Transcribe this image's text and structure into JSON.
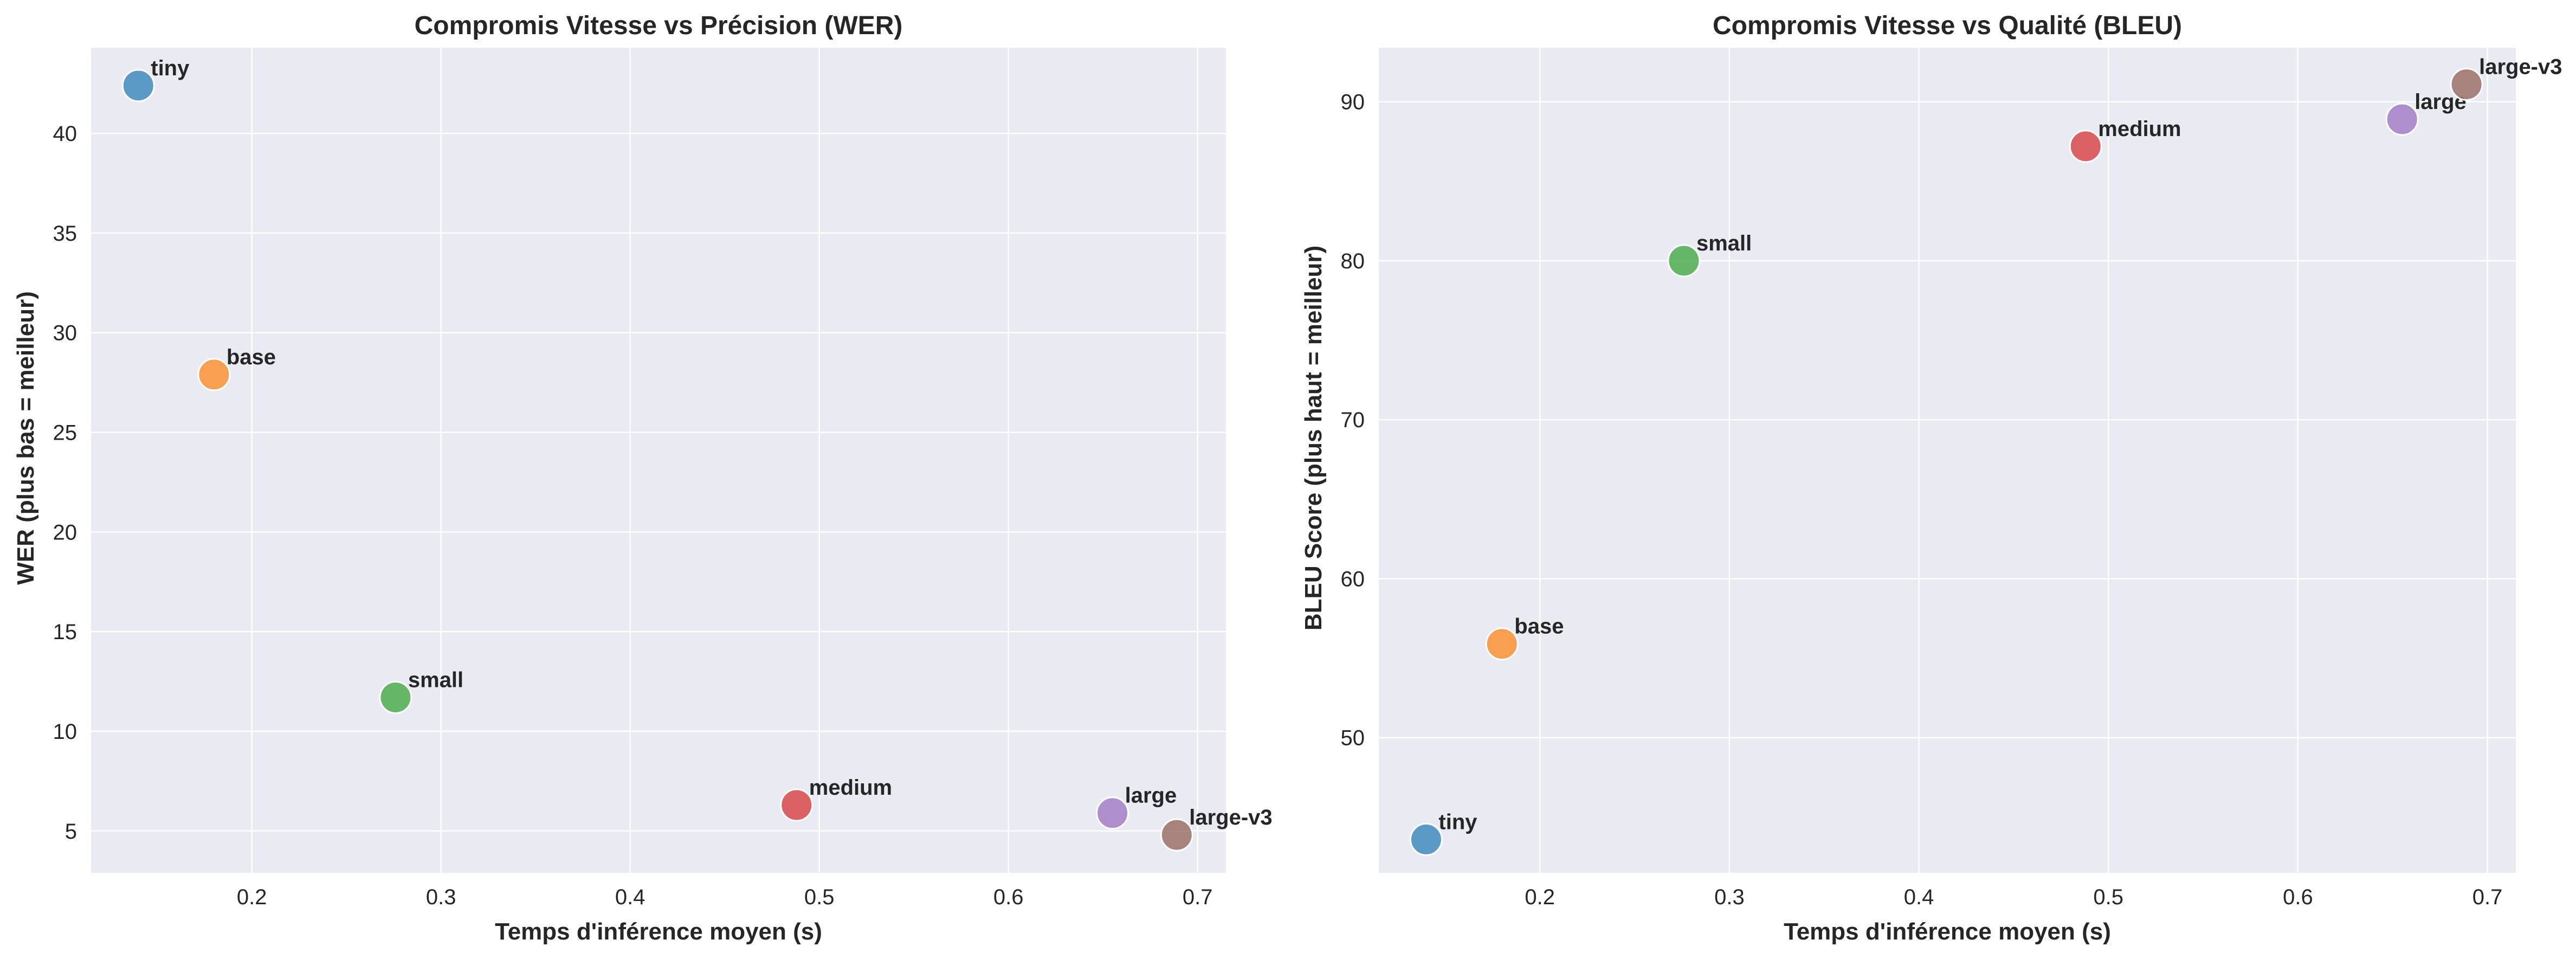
{
  "chart_data": [
    {
      "type": "scatter",
      "title": "Compromis Vitesse vs Précision (WER)",
      "xlabel": "Temps d'inférence moyen (s)",
      "ylabel": "WER (plus bas = meilleur)",
      "xlim": [
        0.115,
        0.715
      ],
      "ylim": [
        2.9,
        44.3
      ],
      "xticks": [
        0.2,
        0.3,
        0.4,
        0.5,
        0.6,
        0.7
      ],
      "yticks": [
        5,
        10,
        15,
        20,
        25,
        30,
        35,
        40
      ],
      "xtick_labels": [
        "0.2",
        "0.3",
        "0.4",
        "0.5",
        "0.6",
        "0.7"
      ],
      "ytick_labels": [
        "5",
        "10",
        "15",
        "20",
        "25",
        "30",
        "35",
        "40"
      ],
      "grid": true,
      "points": [
        {
          "label": "tiny",
          "x": 0.14,
          "y": 42.4,
          "color": "#1f77b4"
        },
        {
          "label": "base",
          "x": 0.18,
          "y": 27.9,
          "color": "#ff7f0e"
        },
        {
          "label": "small",
          "x": 0.276,
          "y": 11.7,
          "color": "#2ca02c"
        },
        {
          "label": "medium",
          "x": 0.488,
          "y": 6.3,
          "color": "#d62728"
        },
        {
          "label": "large",
          "x": 0.655,
          "y": 5.9,
          "color": "#9467bd"
        },
        {
          "label": "large-v3",
          "x": 0.689,
          "y": 4.8,
          "color": "#8c564b"
        }
      ]
    },
    {
      "type": "scatter",
      "title": "Compromis Vitesse vs Qualité (BLEU)",
      "xlabel": "Temps d'inférence moyen (s)",
      "ylabel": "BLEU Score (plus haut = meilleur)",
      "xlim": [
        0.115,
        0.715
      ],
      "ylim": [
        41.5,
        93.4
      ],
      "xticks": [
        0.2,
        0.3,
        0.4,
        0.5,
        0.6,
        0.7
      ],
      "yticks": [
        50,
        60,
        70,
        80,
        90
      ],
      "xtick_labels": [
        "0.2",
        "0.3",
        "0.4",
        "0.5",
        "0.6",
        "0.7"
      ],
      "ytick_labels": [
        "50",
        "60",
        "70",
        "80",
        "90"
      ],
      "grid": true,
      "points": [
        {
          "label": "tiny",
          "x": 0.14,
          "y": 43.6,
          "color": "#1f77b4"
        },
        {
          "label": "base",
          "x": 0.18,
          "y": 55.9,
          "color": "#ff7f0e"
        },
        {
          "label": "small",
          "x": 0.276,
          "y": 80.0,
          "color": "#2ca02c"
        },
        {
          "label": "medium",
          "x": 0.488,
          "y": 87.2,
          "color": "#d62728"
        },
        {
          "label": "large",
          "x": 0.655,
          "y": 88.9,
          "color": "#9467bd"
        },
        {
          "label": "large-v3",
          "x": 0.689,
          "y": 91.1,
          "color": "#8c564b"
        }
      ]
    }
  ],
  "style": {
    "plot_background": "#eaeaf2",
    "grid_color": "#ffffff",
    "text_color": "#262626",
    "marker_alpha": 0.7
  }
}
